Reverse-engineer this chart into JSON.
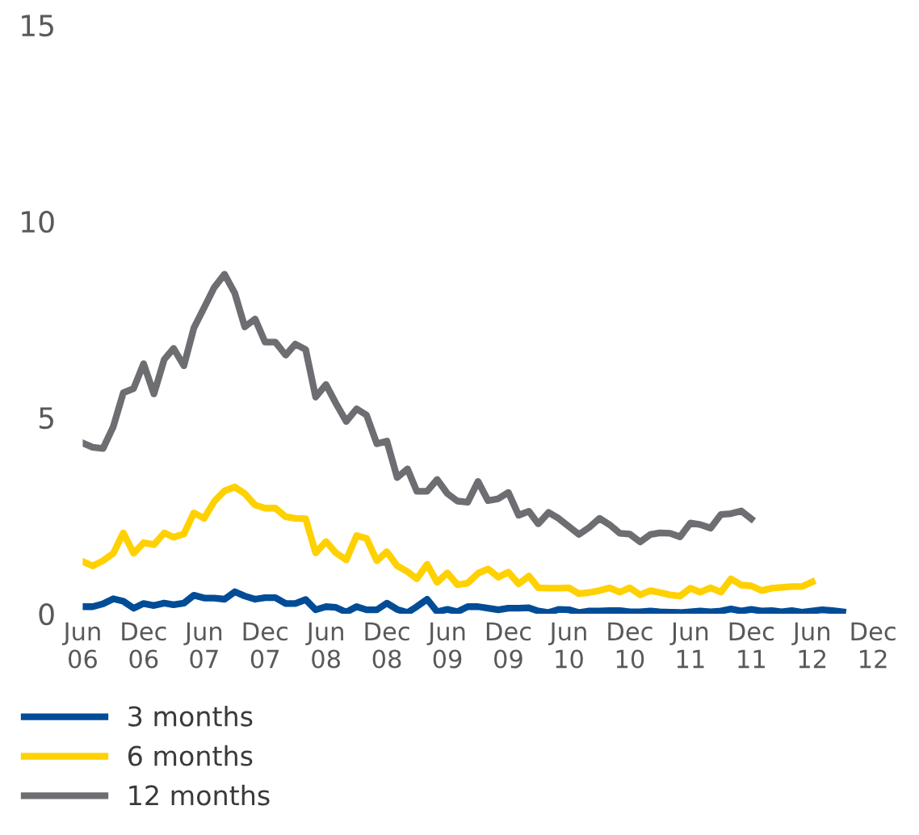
{
  "chart_data": {
    "type": "line",
    "x": [
      "2006-06",
      "2006-07",
      "2006-08",
      "2006-09",
      "2006-10",
      "2006-11",
      "2006-12",
      "2007-01",
      "2007-02",
      "2007-03",
      "2007-04",
      "2007-05",
      "2007-06",
      "2007-07",
      "2007-08",
      "2007-09",
      "2007-10",
      "2007-11",
      "2007-12",
      "2008-01",
      "2008-02",
      "2008-03",
      "2008-04",
      "2008-05",
      "2008-06",
      "2008-07",
      "2008-08",
      "2008-09",
      "2008-10",
      "2008-11",
      "2008-12",
      "2009-01",
      "2009-02",
      "2009-03",
      "2009-04",
      "2009-05",
      "2009-06",
      "2009-07",
      "2009-08",
      "2009-09",
      "2009-10",
      "2009-11",
      "2009-12",
      "2010-01",
      "2010-02",
      "2010-03",
      "2010-04",
      "2010-05",
      "2010-06",
      "2010-07",
      "2010-08",
      "2010-09",
      "2010-10",
      "2010-11",
      "2010-12",
      "2011-01",
      "2011-02",
      "2011-03",
      "2011-04",
      "2011-05",
      "2011-06",
      "2011-07",
      "2011-08",
      "2011-09",
      "2011-10",
      "2011-11",
      "2011-12",
      "2012-01",
      "2012-02",
      "2012-03",
      "2012-04",
      "2012-05",
      "2012-06",
      "2012-07",
      "2012-08",
      "2012-09"
    ],
    "series": [
      {
        "name": "3 months",
        "color": "#004c97",
        "values": [
          0.18,
          0.18,
          0.25,
          0.38,
          0.32,
          0.14,
          0.26,
          0.21,
          0.27,
          0.23,
          0.27,
          0.47,
          0.4,
          0.4,
          0.37,
          0.56,
          0.45,
          0.37,
          0.41,
          0.41,
          0.26,
          0.26,
          0.36,
          0.1,
          0.18,
          0.16,
          0.04,
          0.18,
          0.1,
          0.1,
          0.27,
          0.11,
          0.03,
          0.18,
          0.37,
          0.05,
          0.11,
          0.05,
          0.18,
          0.18,
          0.14,
          0.1,
          0.14,
          0.14,
          0.15,
          0.07,
          0.03,
          0.11,
          0.1,
          0.03,
          0.07,
          0.07,
          0.08,
          0.08,
          0.05,
          0.05,
          0.07,
          0.05,
          0.04,
          0.03,
          0.05,
          0.07,
          0.05,
          0.07,
          0.12,
          0.07,
          0.11,
          0.07,
          0.08,
          0.05,
          0.08,
          0.04,
          0.07,
          0.1,
          0.08,
          0.05
        ]
      },
      {
        "name": "6 months",
        "color": "#ffd100",
        "values": [
          1.33,
          1.22,
          1.35,
          1.54,
          2.06,
          1.54,
          1.81,
          1.76,
          2.06,
          1.95,
          2.03,
          2.57,
          2.43,
          2.86,
          3.13,
          3.23,
          3.06,
          2.77,
          2.69,
          2.69,
          2.47,
          2.43,
          2.42,
          1.55,
          1.84,
          1.55,
          1.37,
          1.99,
          1.92,
          1.35,
          1.58,
          1.22,
          1.07,
          0.89,
          1.26,
          0.8,
          1.04,
          0.74,
          0.78,
          1.03,
          1.14,
          0.93,
          1.06,
          0.76,
          0.96,
          0.66,
          0.65,
          0.65,
          0.66,
          0.51,
          0.54,
          0.59,
          0.66,
          0.55,
          0.66,
          0.48,
          0.59,
          0.54,
          0.48,
          0.45,
          0.65,
          0.55,
          0.66,
          0.55,
          0.89,
          0.73,
          0.71,
          0.59,
          0.65,
          0.67,
          0.69,
          0.69,
          0.81,
          null,
          null,
          null
        ]
      },
      {
        "name": "12 months",
        "color": "#6d6e71",
        "values": [
          4.35,
          4.24,
          4.21,
          4.77,
          5.63,
          5.74,
          6.37,
          5.6,
          6.48,
          6.76,
          6.32,
          7.28,
          7.8,
          8.31,
          8.65,
          8.17,
          7.31,
          7.51,
          6.92,
          6.92,
          6.59,
          6.87,
          6.73,
          5.52,
          5.84,
          5.36,
          4.9,
          5.22,
          5.06,
          4.33,
          4.4,
          3.47,
          3.69,
          3.12,
          3.12,
          3.42,
          3.06,
          2.87,
          2.84,
          3.37,
          2.88,
          2.93,
          3.09,
          2.51,
          2.61,
          2.29,
          2.58,
          2.43,
          2.22,
          2.02,
          2.2,
          2.43,
          2.27,
          2.05,
          2.03,
          1.83,
          2.02,
          2.06,
          2.05,
          1.96,
          2.31,
          2.27,
          2.18,
          2.53,
          2.55,
          2.62,
          2.42,
          null,
          null,
          null,
          null,
          null,
          null,
          null,
          null,
          null
        ]
      }
    ],
    "xlim": [
      "2006-06",
      "2012-12"
    ],
    "xticks": [
      {
        "value": "2006-06",
        "label": "Jun\n06"
      },
      {
        "value": "2006-12",
        "label": "Dec\n06"
      },
      {
        "value": "2007-06",
        "label": "Jun\n07"
      },
      {
        "value": "2007-12",
        "label": "Dec\n07"
      },
      {
        "value": "2008-06",
        "label": "Jun\n08"
      },
      {
        "value": "2008-12",
        "label": "Dec\n08"
      },
      {
        "value": "2009-06",
        "label": "Jun\n09"
      },
      {
        "value": "2009-12",
        "label": "Dec\n09"
      },
      {
        "value": "2010-06",
        "label": "Jun\n10"
      },
      {
        "value": "2010-12",
        "label": "Dec\n10"
      },
      {
        "value": "2011-06",
        "label": "Jun\n11"
      },
      {
        "value": "2011-12",
        "label": "Dec\n11"
      },
      {
        "value": "2012-06",
        "label": "Jun\n12"
      },
      {
        "value": "2012-12",
        "label": "Dec\n12"
      }
    ],
    "ylim": [
      0,
      15
    ],
    "yticks": [
      0,
      5,
      10,
      15
    ],
    "grid": false,
    "legend": "bottom",
    "marker": "none",
    "line_style": "solid"
  }
}
